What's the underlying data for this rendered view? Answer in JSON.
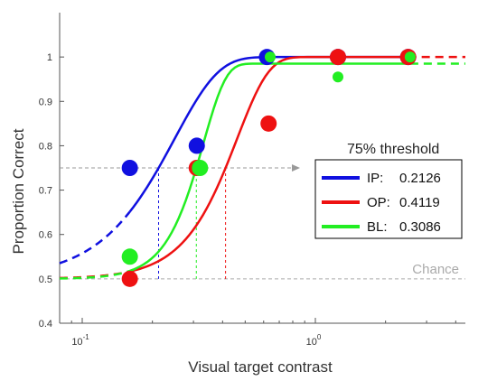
{
  "chart_data": {
    "type": "scatter",
    "xlabel": "Visual target contrast",
    "ylabel": "Proportion Correct",
    "xscale": "log",
    "xlim": [
      0.08,
      4.4
    ],
    "ylim": [
      0.4,
      1.1
    ],
    "x_ticks": [
      {
        "value": 0.1,
        "base": "10",
        "exp": "-1"
      },
      {
        "value": 1,
        "base": "10",
        "exp": "0"
      }
    ],
    "y_ticks": [
      {
        "value": 0.4,
        "label": "0.4"
      },
      {
        "value": 0.5,
        "label": "0.5"
      },
      {
        "value": 0.6,
        "label": "0.6"
      },
      {
        "value": 0.7,
        "label": "0.7"
      },
      {
        "value": 0.8,
        "label": "0.8"
      },
      {
        "value": 0.9,
        "label": "0.9"
      },
      {
        "value": 1.0,
        "label": "1"
      }
    ],
    "legend": {
      "title": "75% threshold",
      "placement": "right"
    },
    "series": [
      {
        "name": "IP:",
        "threshold_label": "0.2126",
        "threshold": 0.2126,
        "color": "#1010e0",
        "points": [
          [
            0.16,
            0.75
          ],
          [
            0.31,
            0.8
          ],
          [
            0.62,
            1.0
          ],
          [
            1.25,
            1.0
          ],
          [
            2.5,
            1.0
          ]
        ],
        "fit_extent": [
          0.08,
          2.5
        ],
        "dashed_extent": [
          0.08,
          0.16
        ],
        "fit": {
          "guess": 0.5,
          "lapse": 0.0,
          "slope": 2.3
        }
      },
      {
        "name": "OP:",
        "threshold_label": "0.4119",
        "threshold": 0.4119,
        "color": "#ee1111",
        "points": [
          [
            0.16,
            0.5
          ],
          [
            0.31,
            0.75
          ],
          [
            0.63,
            0.85
          ],
          [
            1.25,
            1.0
          ],
          [
            2.5,
            1.0
          ]
        ],
        "fit_extent": [
          0.08,
          4.4
        ],
        "dashed_extent": [
          0.08,
          0.16
        ],
        "dashed_extent_right": [
          2.5,
          4.4
        ],
        "fit": {
          "guess": 0.5,
          "lapse": 0.0,
          "slope": 3.2
        }
      },
      {
        "name": "BL:",
        "threshold_label": "0.3086",
        "threshold": 0.3086,
        "color": "#22ee22",
        "points": [
          [
            0.16,
            0.55
          ],
          [
            0.32,
            0.75
          ],
          [
            0.64,
            1.0
          ],
          [
            1.25,
            0.955
          ],
          [
            2.55,
            1.0
          ]
        ],
        "fit_extent": [
          0.08,
          4.4
        ],
        "dashed_extent": [
          0.08,
          0.16
        ],
        "dashed_extent_right": [
          2.55,
          4.4
        ],
        "fit": {
          "guess": 0.5,
          "lapse": 0.015,
          "slope": 4.5
        }
      }
    ],
    "threshold_level": 0.75,
    "chance": {
      "value": 0.5,
      "label": "Chance"
    },
    "grid": false
  }
}
